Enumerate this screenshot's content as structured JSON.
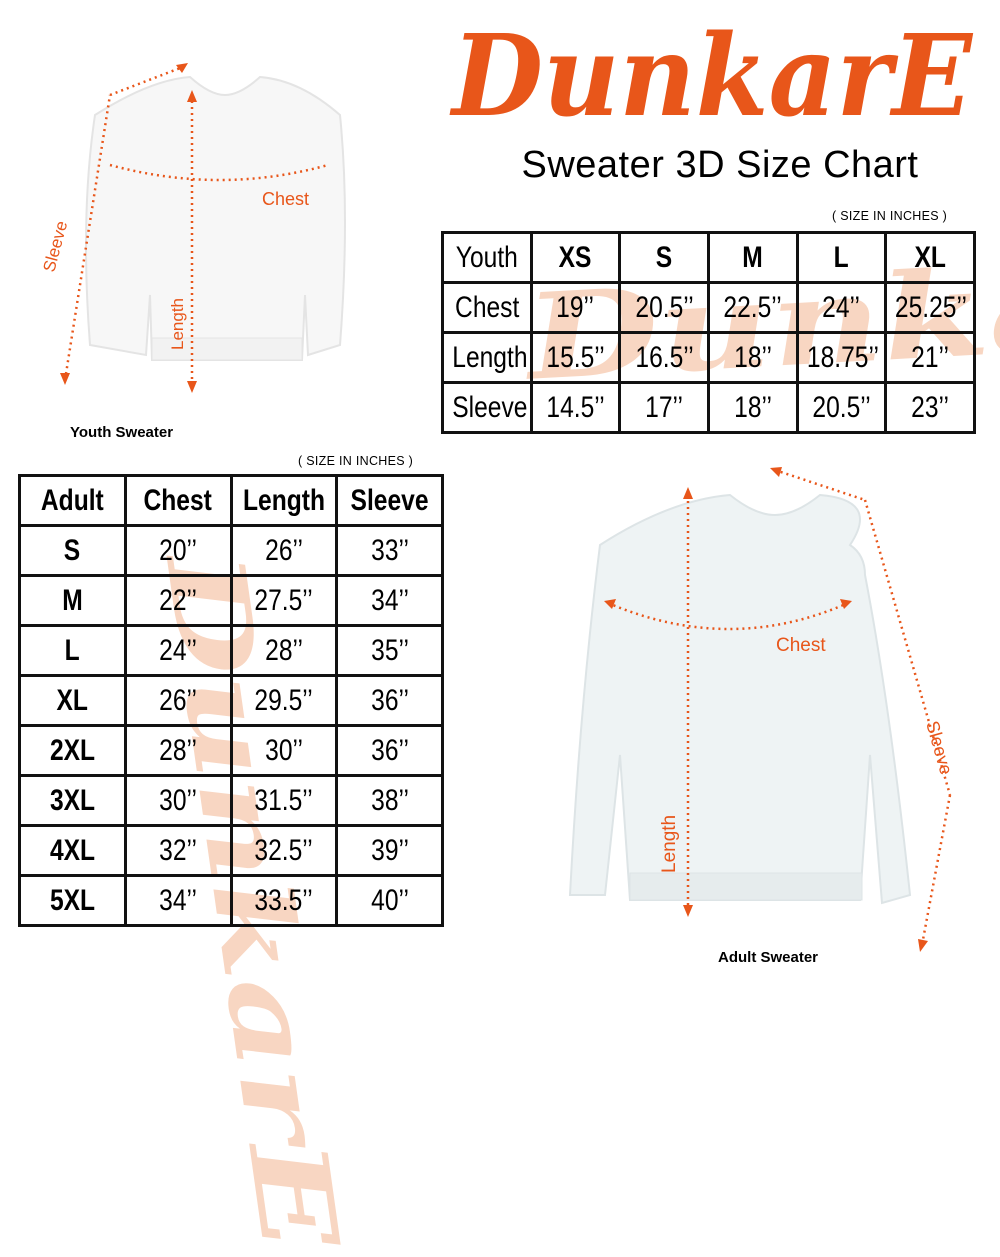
{
  "brand": {
    "logo_text": "DunkarE",
    "color": "#e8561a"
  },
  "title": "Sweater 3D Size Chart",
  "youth": {
    "units_note": "( SIZE IN INCHES )",
    "caption": "Youth Sweater",
    "diagram_labels": {
      "chest": "Chest",
      "length": "Length",
      "sleeve": "Sleeve"
    },
    "header": [
      "Youth",
      "XS",
      "S",
      "M",
      "L",
      "XL"
    ],
    "rows": [
      [
        "Chest",
        "19’’",
        "20.5’’",
        "22.5’’",
        "24’’",
        "25.25’’"
      ],
      [
        "Length",
        "15.5’’",
        "16.5’’",
        "18’’",
        "18.75’’",
        "21’’"
      ],
      [
        "Sleeve",
        "14.5’’",
        "17’’",
        "18’’",
        "20.5’’",
        "23’’"
      ]
    ]
  },
  "adult": {
    "units_note": "( SIZE IN INCHES )",
    "caption": "Adult Sweater",
    "diagram_labels": {
      "chest": "Chest",
      "length": "Length",
      "sleeve": "Sleeve"
    },
    "header": [
      "Adult",
      "Chest",
      "Length",
      "Sleeve"
    ],
    "rows": [
      [
        "S",
        "20’’",
        "26’’",
        "33’’"
      ],
      [
        "M",
        "22’’",
        "27.5’’",
        "34’’"
      ],
      [
        "L",
        "24’’",
        "28’’",
        "35’’"
      ],
      [
        "XL",
        "26’’",
        "29.5’’",
        "36’’"
      ],
      [
        "2XL",
        "28’’",
        "30’’",
        "36’’"
      ],
      [
        "3XL",
        "30’’",
        "31.5’’",
        "38’’"
      ],
      [
        "4XL",
        "32’’",
        "32.5’’",
        "39’’"
      ],
      [
        "5XL",
        "34’’",
        "33.5’’",
        "40’’"
      ]
    ]
  }
}
